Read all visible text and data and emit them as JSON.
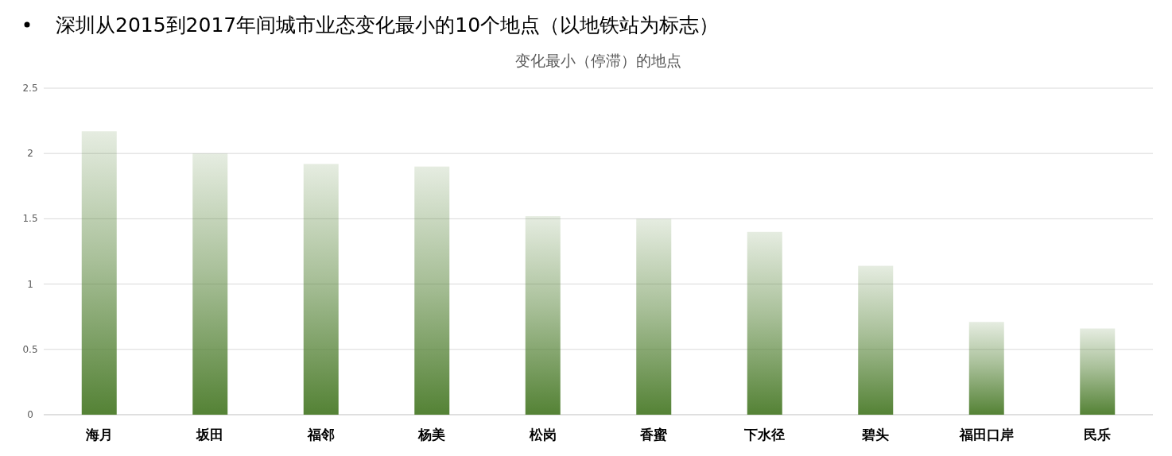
{
  "chart_data": {
    "type": "bar",
    "title": "深圳从2015到2017年间城市业态变化最小的10个地点（以地铁站为标志）",
    "subtitle": "变化最小（停滞）的地点",
    "categories": [
      "海月",
      "坂田",
      "福邻",
      "杨美",
      "松岗",
      "香蜜",
      "下水径",
      "碧头",
      "福田口岸",
      "民乐"
    ],
    "values": [
      2.17,
      2.0,
      1.92,
      1.9,
      1.52,
      1.5,
      1.4,
      1.14,
      0.71,
      0.66
    ],
    "color": "#548235",
    "ylim": [
      0,
      2.5
    ],
    "yticks": [
      0,
      0.5,
      1,
      1.5,
      2,
      2.5
    ],
    "grid": "y"
  }
}
